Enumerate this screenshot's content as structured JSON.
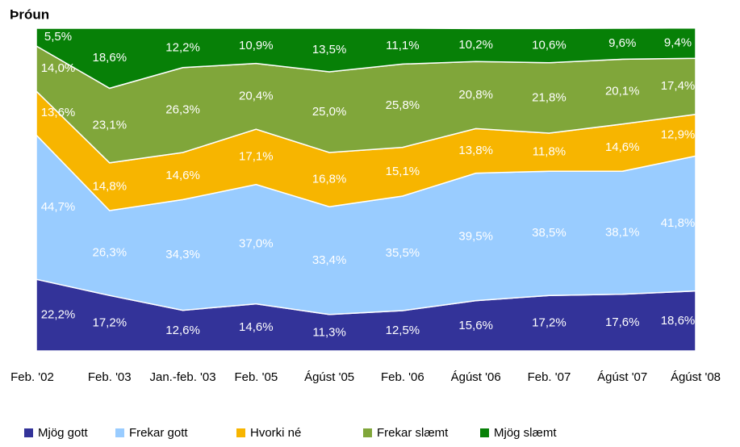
{
  "chart_data": {
    "type": "area",
    "title": "Þróun",
    "stacked": true,
    "ylim": [
      0,
      100
    ],
    "categories": [
      "Feb. '02",
      "Feb. '03",
      "Jan.-feb. '03",
      "Feb. '05",
      "Ágúst '05",
      "Feb. '06",
      "Ágúst '06",
      "Feb. '07",
      "Ágúst '07",
      "Ágúst '08"
    ],
    "series": [
      {
        "name": "Mjög gott",
        "color": "#333399",
        "values": [
          22.2,
          17.2,
          12.6,
          14.6,
          11.3,
          12.5,
          15.6,
          17.2,
          17.6,
          18.6
        ],
        "value_labels": [
          "22,2%",
          "17,2%",
          "12,6%",
          "14,6%",
          "11,3%",
          "12,5%",
          "15,6%",
          "17,2%",
          "17,6%",
          "18,6%"
        ]
      },
      {
        "name": "Frekar gott",
        "color": "#99ccff",
        "values": [
          44.7,
          26.3,
          34.3,
          37.0,
          33.4,
          35.5,
          39.5,
          38.5,
          38.1,
          41.8
        ],
        "value_labels": [
          "44,7%",
          "26,3%",
          "34,3%",
          "37,0%",
          "33,4%",
          "35,5%",
          "39,5%",
          "38,5%",
          "38,1%",
          "41,8%"
        ]
      },
      {
        "name": "Hvorki né",
        "color": "#f7b500",
        "values": [
          13.6,
          14.8,
          14.6,
          17.1,
          16.8,
          15.1,
          13.8,
          11.8,
          14.6,
          12.9
        ],
        "value_labels": [
          "13,6%",
          "14,8%",
          "14,6%",
          "17,1%",
          "16,8%",
          "15,1%",
          "13,8%",
          "11,8%",
          "14,6%",
          "12,9%"
        ]
      },
      {
        "name": "Frekar slæmt",
        "color": "#80a63a",
        "values": [
          14.0,
          23.1,
          26.3,
          20.4,
          25.0,
          25.8,
          20.8,
          21.8,
          20.1,
          17.4
        ],
        "value_labels": [
          "14,0%",
          "23,1%",
          "26,3%",
          "20,4%",
          "25,0%",
          "25,8%",
          "20,8%",
          "21,8%",
          "20,1%",
          "17,4%"
        ]
      },
      {
        "name": "Mjög slæmt",
        "color": "#078007",
        "values": [
          5.5,
          18.6,
          12.2,
          10.9,
          13.5,
          11.1,
          10.2,
          10.6,
          9.6,
          9.4
        ],
        "value_labels": [
          "5,5%",
          "18,6%",
          "12,2%",
          "10,9%",
          "13,5%",
          "11,1%",
          "10,2%",
          "10,6%",
          "9,6%",
          "9,4%"
        ]
      }
    ],
    "legend": "bottom"
  }
}
